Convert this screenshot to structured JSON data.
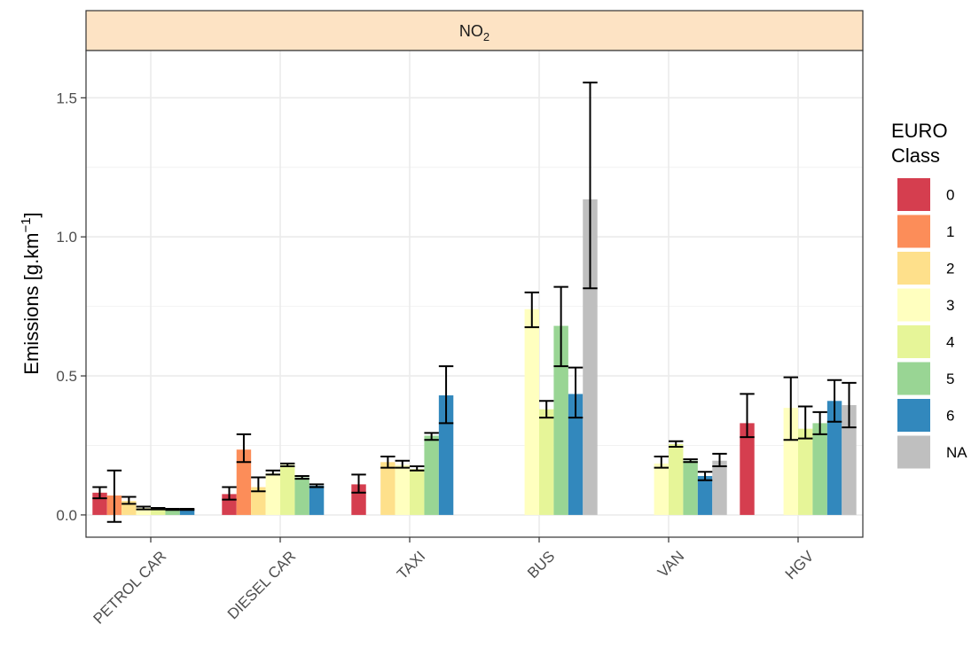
{
  "chart_data": {
    "type": "bar",
    "facet_label": "NO",
    "facet_label_sub": "2",
    "ylabel": "Emissions [g.km",
    "ylabel_sup": "−1",
    "ylabel_end": "]",
    "xlabel": "",
    "ylim": [
      -0.08,
      1.67
    ],
    "yticks": [
      0.0,
      0.5,
      1.0,
      1.5
    ],
    "ytick_labels": [
      "0.0",
      "0.5",
      "1.0",
      "1.5"
    ],
    "categories": [
      "PETROL CAR",
      "DIESEL CAR",
      "TAXI",
      "BUS",
      "VAN",
      "HGV"
    ],
    "legend": {
      "title_line1": "EURO",
      "title_line2": "Class",
      "placement": "right"
    },
    "series": [
      {
        "name": "0",
        "color": "#d53e4f",
        "values": [
          0.08,
          0.075,
          0.11,
          null,
          null,
          0.33
        ],
        "err_low": [
          0.06,
          0.055,
          0.08,
          null,
          null,
          0.28
        ],
        "err_high": [
          0.1,
          0.1,
          0.145,
          null,
          null,
          0.435
        ]
      },
      {
        "name": "1",
        "color": "#fc8d59",
        "values": [
          0.07,
          0.235,
          null,
          null,
          null,
          null
        ],
        "err_low": [
          -0.025,
          0.19,
          null,
          null,
          null,
          null
        ],
        "err_high": [
          0.16,
          0.29,
          null,
          null,
          null,
          null
        ]
      },
      {
        "name": "2",
        "color": "#fee08b",
        "values": [
          0.05,
          0.1,
          0.19,
          null,
          null,
          null
        ],
        "err_low": [
          0.04,
          0.085,
          0.17,
          null,
          null,
          null
        ],
        "err_high": [
          0.065,
          0.135,
          0.21,
          null,
          null,
          null
        ]
      },
      {
        "name": "3",
        "color": "#ffffbf",
        "values": [
          0.025,
          0.15,
          0.18,
          0.74,
          0.185,
          0.385
        ],
        "err_low": [
          0.02,
          0.145,
          0.17,
          0.675,
          0.17,
          0.27
        ],
        "err_high": [
          0.03,
          0.16,
          0.195,
          0.8,
          0.21,
          0.495
        ]
      },
      {
        "name": "4",
        "color": "#e6f598",
        "values": [
          0.025,
          0.18,
          0.165,
          0.38,
          0.255,
          0.31
        ],
        "err_low": [
          0.02,
          0.175,
          0.16,
          0.35,
          0.245,
          0.275
        ],
        "err_high": [
          0.025,
          0.185,
          0.175,
          0.41,
          0.265,
          0.39
        ]
      },
      {
        "name": "5",
        "color": "#99d594",
        "values": [
          0.02,
          0.135,
          0.285,
          0.68,
          0.195,
          0.33
        ],
        "err_low": [
          0.018,
          0.13,
          0.27,
          0.535,
          0.19,
          0.29
        ],
        "err_high": [
          0.022,
          0.14,
          0.295,
          0.82,
          0.2,
          0.37
        ]
      },
      {
        "name": "6",
        "color": "#3288bd",
        "values": [
          0.02,
          0.105,
          0.43,
          0.435,
          0.14,
          0.41
        ],
        "err_low": [
          0.018,
          0.1,
          0.33,
          0.35,
          0.125,
          0.335
        ],
        "err_high": [
          0.022,
          0.11,
          0.535,
          0.53,
          0.155,
          0.485
        ]
      },
      {
        "name": "NA",
        "color": "#bfbfbf",
        "values": [
          null,
          null,
          null,
          1.135,
          0.195,
          0.395
        ],
        "err_low": [
          null,
          null,
          null,
          0.815,
          0.175,
          0.315
        ],
        "err_high": [
          null,
          null,
          null,
          1.555,
          0.22,
          0.475
        ]
      }
    ]
  }
}
